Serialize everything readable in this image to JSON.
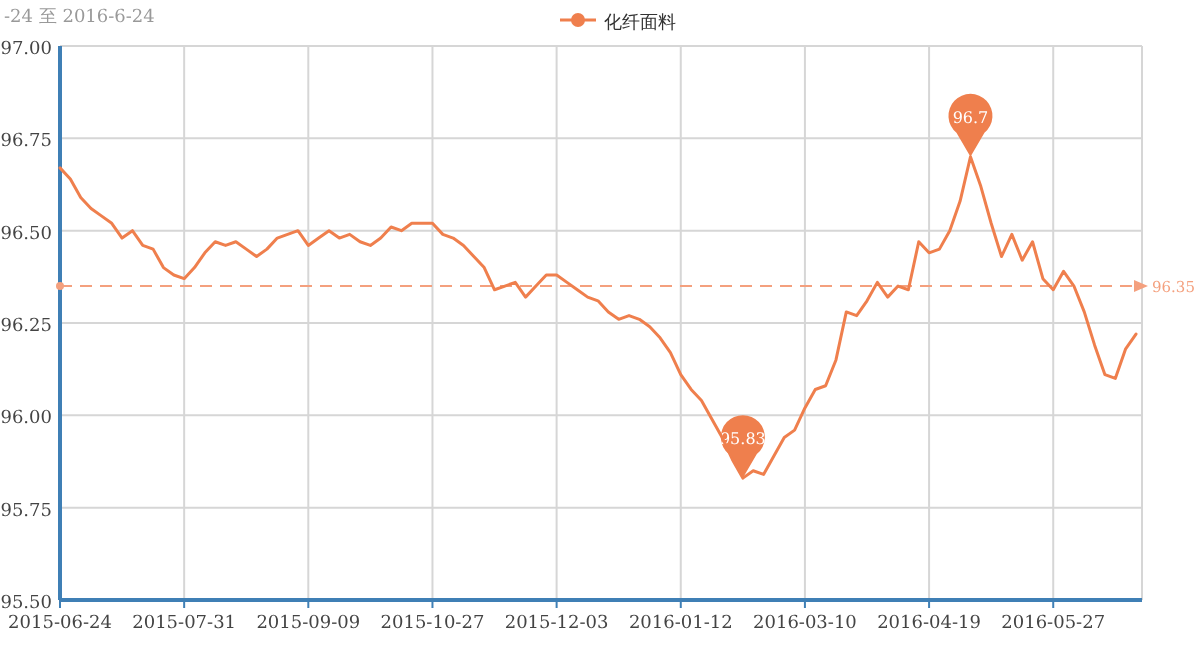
{
  "chart_data": {
    "type": "line",
    "title": "-24 至 2016-6-24",
    "categories": [
      "2015-06-24",
      null,
      null,
      null,
      null,
      null,
      null,
      null,
      null,
      null,
      null,
      null,
      "2015-07-31",
      null,
      null,
      null,
      null,
      null,
      null,
      null,
      null,
      null,
      null,
      null,
      "2015-09-09",
      null,
      null,
      null,
      null,
      null,
      null,
      null,
      null,
      null,
      null,
      null,
      "2015-10-27",
      null,
      null,
      null,
      null,
      null,
      null,
      null,
      null,
      null,
      null,
      null,
      "2015-12-03",
      null,
      null,
      null,
      null,
      null,
      null,
      null,
      null,
      null,
      null,
      null,
      "2016-01-12",
      null,
      null,
      null,
      null,
      null,
      null,
      null,
      null,
      null,
      null,
      null,
      "2016-03-10",
      null,
      null,
      null,
      null,
      null,
      null,
      null,
      null,
      null,
      null,
      null,
      "2016-04-19",
      null,
      null,
      null,
      null,
      null,
      null,
      null,
      null,
      null,
      null,
      null,
      "2016-05-27",
      null,
      null,
      null,
      null,
      null,
      null,
      null,
      null
    ],
    "series": [
      {
        "name": "化纤面料",
        "color": "#ef7f4d",
        "values": [
          96.67,
          96.64,
          96.59,
          96.56,
          96.54,
          96.52,
          96.48,
          96.5,
          96.46,
          96.45,
          96.4,
          96.38,
          96.37,
          96.4,
          96.44,
          96.47,
          96.46,
          96.47,
          96.45,
          96.43,
          96.45,
          96.48,
          96.49,
          96.5,
          96.46,
          96.48,
          96.5,
          96.48,
          96.49,
          96.47,
          96.46,
          96.48,
          96.51,
          96.5,
          96.52,
          96.52,
          96.52,
          96.49,
          96.48,
          96.46,
          96.43,
          96.4,
          96.34,
          96.35,
          96.36,
          96.32,
          96.35,
          96.38,
          96.38,
          96.36,
          96.34,
          96.32,
          96.31,
          96.28,
          96.26,
          96.27,
          96.26,
          96.24,
          96.21,
          96.17,
          96.11,
          96.07,
          96.04,
          95.99,
          95.94,
          95.88,
          95.83,
          95.85,
          95.84,
          95.89,
          95.94,
          95.96,
          96.02,
          96.07,
          96.08,
          96.15,
          96.28,
          96.27,
          96.31,
          96.36,
          96.32,
          96.35,
          96.34,
          96.47,
          96.44,
          96.45,
          96.5,
          96.58,
          96.7,
          96.62,
          96.52,
          96.43,
          96.49,
          96.42,
          96.47,
          96.37,
          96.34,
          96.39,
          96.35,
          96.28,
          96.19,
          96.11,
          96.1,
          96.18,
          96.22
        ]
      }
    ],
    "ylim": [
      95.5,
      97
    ],
    "yticks": [
      {
        "value": 95.5,
        "label": "95.50"
      },
      {
        "value": 95.75,
        "label": "95.75"
      },
      {
        "value": 96,
        "label": "96.00"
      },
      {
        "value": 96.25,
        "label": "96.25"
      },
      {
        "value": 96.5,
        "label": "96.50"
      },
      {
        "value": 96.75,
        "label": "96.75"
      },
      {
        "value": 97,
        "label": "97.00"
      }
    ],
    "grid": true,
    "legend": "top",
    "ref_lines": [
      {
        "axis": "y",
        "value": 96.35,
        "label": "96.35",
        "color": "#f4a07e",
        "line_style": "dashed"
      }
    ],
    "annotations": [
      {
        "text": "96.7",
        "y": 96.7
      },
      {
        "text": "95.83",
        "y": 95.83
      }
    ]
  }
}
